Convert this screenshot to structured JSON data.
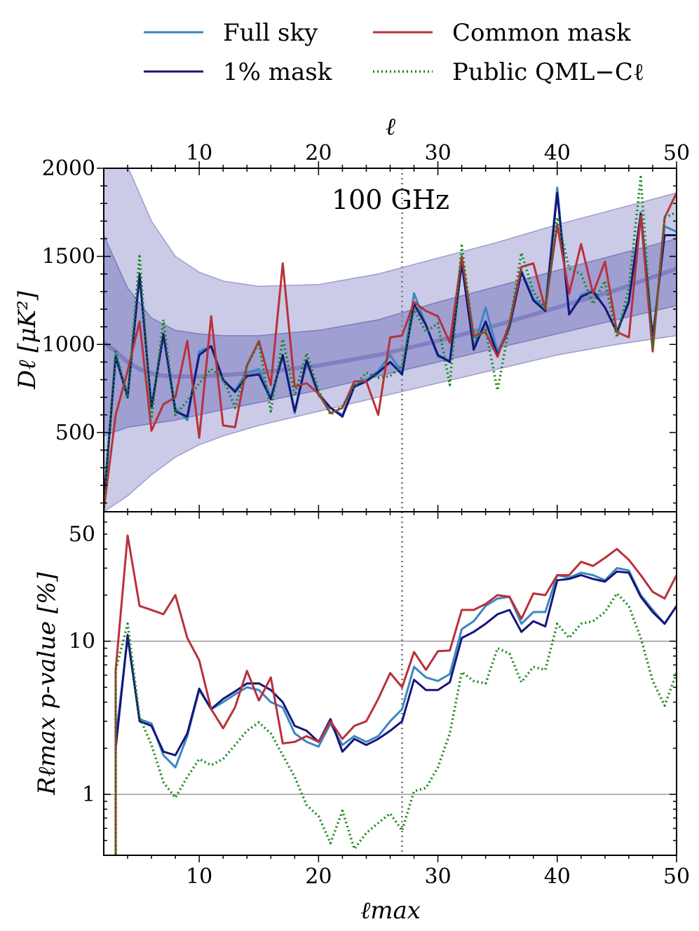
{
  "legend": {
    "items": [
      {
        "label": "Full sky",
        "color": "#3a87c0",
        "style": "solid"
      },
      {
        "label": "Common mask",
        "color": "#b8313a",
        "style": "solid"
      },
      {
        "label": "1% mask",
        "color": "#15157a",
        "style": "solid"
      },
      {
        "label": "Public QML−Cℓ",
        "color": "#118811",
        "style": "dotted"
      }
    ]
  },
  "chart_data": [
    {
      "type": "line",
      "panel": "top",
      "annotation": "100 GHz",
      "ylabel": "Dℓ [μK²]",
      "xlabel_top": "ℓ",
      "xlim": [
        2,
        50
      ],
      "ylim": [
        50,
        2000
      ],
      "xticks": [
        10,
        20,
        30,
        40,
        50
      ],
      "yticks": [
        500,
        1000,
        1500,
        2000
      ],
      "vline_x": 27,
      "band_x": [
        2,
        4,
        6,
        8,
        10,
        12,
        15,
        20,
        25,
        30,
        35,
        40,
        45,
        50
      ],
      "band_2sigma_upper": [
        2500,
        2010,
        1700,
        1500,
        1410,
        1360,
        1330,
        1340,
        1400,
        1490,
        1580,
        1680,
        1770,
        1860
      ],
      "band_2sigma_lower": [
        50,
        140,
        260,
        360,
        430,
        480,
        540,
        620,
        700,
        780,
        860,
        940,
        1000,
        1050
      ],
      "band_1sigma_upper": [
        1620,
        1320,
        1150,
        1080,
        1060,
        1050,
        1050,
        1080,
        1140,
        1240,
        1330,
        1420,
        1510,
        1600
      ],
      "band_1sigma_lower": [
        480,
        530,
        550,
        570,
        600,
        630,
        670,
        740,
        820,
        900,
        980,
        1060,
        1140,
        1220
      ],
      "model_x": [
        2,
        3,
        4,
        5,
        6,
        7,
        8,
        10,
        12,
        15,
        20,
        25,
        30,
        35,
        40,
        45,
        50
      ],
      "model_y": [
        1010,
        960,
        900,
        860,
        835,
        822,
        818,
        818,
        826,
        840,
        880,
        940,
        1020,
        1110,
        1210,
        1310,
        1430
      ],
      "x": [
        2,
        3,
        4,
        5,
        6,
        7,
        8,
        9,
        10,
        11,
        12,
        13,
        14,
        15,
        16,
        17,
        18,
        19,
        20,
        21,
        22,
        23,
        24,
        25,
        26,
        27,
        28,
        29,
        30,
        31,
        32,
        33,
        34,
        35,
        36,
        37,
        38,
        39,
        40,
        41,
        42,
        43,
        44,
        45,
        46,
        47,
        48,
        49,
        50
      ],
      "series": [
        {
          "name": "Full sky",
          "values": [
            110,
            950,
            710,
            1380,
            650,
            1050,
            640,
            570,
            960,
            990,
            790,
            740,
            840,
            860,
            700,
            930,
            610,
            900,
            710,
            640,
            600,
            770,
            800,
            850,
            940,
            840,
            1290,
            1110,
            930,
            910,
            1460,
            980,
            1210,
            960,
            1100,
            1420,
            1260,
            1210,
            1890,
            1170,
            1280,
            1310,
            1210,
            1070,
            1250,
            1750,
            1010,
            1670,
            1640
          ]
        },
        {
          "name": "1% mask",
          "values": [
            90,
            930,
            700,
            1400,
            640,
            1060,
            620,
            590,
            940,
            990,
            800,
            730,
            820,
            830,
            690,
            940,
            620,
            910,
            720,
            640,
            590,
            760,
            790,
            840,
            900,
            830,
            1230,
            1110,
            940,
            900,
            1460,
            970,
            1130,
            940,
            1100,
            1410,
            1250,
            1190,
            1860,
            1170,
            1270,
            1300,
            1210,
            1070,
            1240,
            1740,
            1040,
            1620,
            1620
          ]
        },
        {
          "name": "Common mask",
          "values": [
            60,
            600,
            850,
            1130,
            510,
            660,
            700,
            1020,
            470,
            1160,
            540,
            530,
            880,
            1020,
            770,
            1460,
            760,
            780,
            720,
            610,
            640,
            790,
            790,
            600,
            1040,
            1050,
            1240,
            1190,
            1160,
            1010,
            1500,
            1050,
            1070,
            930,
            1120,
            1440,
            1460,
            1200,
            1680,
            1290,
            1570,
            1290,
            1470,
            1070,
            1040,
            1730,
            960,
            1720,
            1860
          ]
        },
        {
          "name": "Public QML−Cℓ",
          "values": [
            50,
            960,
            700,
            1500,
            580,
            1140,
            600,
            680,
            780,
            860,
            810,
            640,
            880,
            1010,
            620,
            1030,
            710,
            950,
            740,
            600,
            650,
            760,
            840,
            810,
            820,
            880,
            1200,
            1070,
            1120,
            770,
            1560,
            1030,
            1080,
            740,
            1110,
            1520,
            1300,
            1200,
            1720,
            1430,
            1400,
            1230,
            1360,
            1040,
            1320,
            1950,
            980,
            1720,
            1750
          ]
        }
      ]
    },
    {
      "type": "line",
      "panel": "bottom",
      "ylabel": "Rℓmax p-value [%]",
      "xlabel": "ℓmax",
      "xlim": [
        2,
        50
      ],
      "ylim": [
        0.4,
        70
      ],
      "yscale": "log",
      "xticks": [
        10,
        20,
        30,
        40,
        50
      ],
      "yticks": [
        1,
        10,
        50
      ],
      "hlines": [
        1,
        10
      ],
      "vline_x": 27,
      "x": [
        3,
        4,
        5,
        6,
        7,
        8,
        9,
        10,
        11,
        12,
        13,
        14,
        15,
        16,
        17,
        18,
        19,
        20,
        21,
        22,
        23,
        24,
        25,
        26,
        27,
        28,
        29,
        30,
        31,
        32,
        33,
        34,
        35,
        36,
        37,
        38,
        39,
        40,
        41,
        42,
        43,
        44,
        45,
        46,
        47,
        48,
        49,
        50
      ],
      "series": [
        {
          "name": "Full sky",
          "values": [
            2.3,
            10.5,
            3.1,
            2.9,
            1.8,
            1.5,
            2.4,
            4.8,
            3.6,
            4.0,
            4.5,
            5.0,
            4.8,
            4.0,
            3.7,
            2.5,
            2.2,
            2.05,
            2.9,
            2.1,
            2.4,
            2.2,
            2.4,
            3.0,
            3.6,
            6.8,
            5.8,
            5.5,
            6.1,
            12.0,
            13.5,
            17.0,
            19.0,
            19.5,
            13.0,
            15.5,
            15.5,
            27.0,
            26.0,
            28.0,
            27.0,
            25.0,
            30.0,
            29.0,
            20.0,
            16.0,
            13.0,
            17.0
          ]
        },
        {
          "name": "1% mask",
          "values": [
            2.0,
            11.0,
            3.0,
            2.8,
            1.9,
            1.8,
            2.5,
            4.9,
            3.6,
            4.2,
            4.7,
            5.3,
            5.3,
            4.8,
            4.0,
            2.8,
            2.6,
            2.2,
            3.1,
            1.9,
            2.3,
            2.1,
            2.3,
            2.6,
            3.0,
            5.6,
            4.8,
            4.8,
            5.4,
            10.5,
            11.5,
            13.0,
            15.0,
            16.0,
            11.5,
            13.5,
            12.5,
            25.0,
            25.5,
            27.0,
            25.5,
            24.5,
            28.5,
            28.0,
            19.5,
            15.5,
            13.0,
            17.0
          ]
        },
        {
          "name": "Common mask",
          "values": [
            6.5,
            49.0,
            17.0,
            16.0,
            15.0,
            20.0,
            10.5,
            7.5,
            3.6,
            2.7,
            3.7,
            6.4,
            4.1,
            5.8,
            2.15,
            2.2,
            2.4,
            2.2,
            3.0,
            2.3,
            2.8,
            3.0,
            4.2,
            6.2,
            5.0,
            8.5,
            6.5,
            8.6,
            8.7,
            16.0,
            16.0,
            17.5,
            20.0,
            19.5,
            14.0,
            20.5,
            20.0,
            27.0,
            27.0,
            33.0,
            31.0,
            35.0,
            40.0,
            34.0,
            27.0,
            21.0,
            19.0,
            27.0
          ]
        },
        {
          "name": "Public QML−Cℓ",
          "values": [
            6.5,
            13.0,
            3.2,
            2.1,
            1.2,
            0.95,
            1.3,
            1.7,
            1.55,
            1.7,
            2.1,
            2.6,
            2.95,
            2.5,
            1.8,
            1.3,
            0.85,
            0.72,
            0.48,
            0.78,
            0.44,
            0.56,
            0.65,
            0.75,
            0.58,
            1.05,
            1.1,
            1.5,
            2.5,
            6.3,
            5.5,
            5.3,
            9.0,
            8.3,
            5.4,
            6.8,
            6.5,
            13.0,
            10.5,
            13.0,
            13.5,
            15.5,
            20.5,
            17.0,
            10.5,
            5.5,
            3.8,
            6.2
          ]
        }
      ]
    }
  ],
  "axis_labels": {
    "top_ticks": [
      "10",
      "20",
      "30",
      "40",
      "50"
    ],
    "bottom_ticks": [
      "10",
      "20",
      "30",
      "40",
      "50"
    ],
    "top_panel_yticks": [
      "500",
      "1000",
      "1500",
      "2000"
    ],
    "bottom_panel_yticks": [
      "1",
      "10",
      "50"
    ]
  }
}
